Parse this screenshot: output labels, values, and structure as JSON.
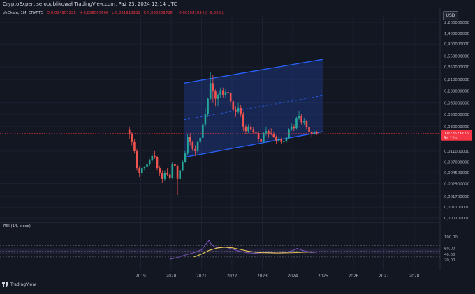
{
  "header": {
    "publisher_text": "CryptoExpertise opublikował TradingView.com, Paź 23, 2024 12:14 UTC"
  },
  "legend": {
    "symbol": "VeChain, 1M, CRYPTO",
    "open": "O 0,024307326",
    "high": "H 0,025097606",
    "low": "L 0,021319321",
    "close": "C 0,022623725",
    "change": "−0,001681934 (−6,92%)"
  },
  "currency_button": "USD",
  "price_axis": {
    "labels": [
      "2,200000000",
      "1,400000000",
      "0,900000000",
      "0,550000000",
      "0,350000000",
      "0,210000000",
      "0,130000000",
      "0,080000000",
      "0,050000000",
      "0,030000000",
      "0,011000000",
      "0,007000000",
      "0,004500000",
      "0,002900000",
      "0,001700000",
      "0,001100000",
      "0,000700000"
    ],
    "current_price": "0,022623725",
    "countdown": "8d 12h"
  },
  "rsi": {
    "title": "RSI (14, close)",
    "labels": [
      "100,00",
      "60,00",
      "40,00",
      "20,00"
    ]
  },
  "time_axis": [
    "2019",
    "2020",
    "2021",
    "2022",
    "2023",
    "2024",
    "2025",
    "2026",
    "2027",
    "2028"
  ],
  "footer": {
    "brand": "TradingView"
  },
  "colors": {
    "background": "#131722",
    "bull": "#26a69a",
    "bear": "#ef5350",
    "channel": "#2962ff",
    "price_line": "#f23645",
    "rsi_line": "#7e57c2",
    "rsi_ma": "#f7d154"
  },
  "chart_data": {
    "type": "candlestick",
    "timeframe": "1M",
    "scale": "log",
    "ylim": [
      0.0007,
      2.2
    ],
    "last_price": 0.022623725,
    "candles": [
      {
        "t": "2018-08",
        "o": 0.027,
        "h": 0.03,
        "l": 0.018,
        "c": 0.022
      },
      {
        "t": "2018-09",
        "o": 0.022,
        "h": 0.024,
        "l": 0.014,
        "c": 0.016
      },
      {
        "t": "2018-10",
        "o": 0.016,
        "h": 0.018,
        "l": 0.01,
        "c": 0.011
      },
      {
        "t": "2018-11",
        "o": 0.011,
        "h": 0.012,
        "l": 0.005,
        "c": 0.0055
      },
      {
        "t": "2018-12",
        "o": 0.0055,
        "h": 0.006,
        "l": 0.0038,
        "c": 0.0045
      },
      {
        "t": "2019-01",
        "o": 0.0045,
        "h": 0.006,
        "l": 0.004,
        "c": 0.0055
      },
      {
        "t": "2019-02",
        "o": 0.0055,
        "h": 0.006,
        "l": 0.005,
        "c": 0.0057
      },
      {
        "t": "2019-03",
        "o": 0.0057,
        "h": 0.007,
        "l": 0.0052,
        "c": 0.0065
      },
      {
        "t": "2019-04",
        "o": 0.0065,
        "h": 0.008,
        "l": 0.006,
        "c": 0.0075
      },
      {
        "t": "2019-05",
        "o": 0.0075,
        "h": 0.01,
        "l": 0.007,
        "c": 0.009
      },
      {
        "t": "2019-06",
        "o": 0.009,
        "h": 0.011,
        "l": 0.008,
        "c": 0.0085
      },
      {
        "t": "2019-07",
        "o": 0.0085,
        "h": 0.009,
        "l": 0.005,
        "c": 0.0055
      },
      {
        "t": "2019-08",
        "o": 0.0055,
        "h": 0.006,
        "l": 0.004,
        "c": 0.0045
      },
      {
        "t": "2019-09",
        "o": 0.0045,
        "h": 0.005,
        "l": 0.003,
        "c": 0.0035
      },
      {
        "t": "2019-10",
        "o": 0.0035,
        "h": 0.005,
        "l": 0.0032,
        "c": 0.0045
      },
      {
        "t": "2019-11",
        "o": 0.0045,
        "h": 0.0055,
        "l": 0.004,
        "c": 0.0042
      },
      {
        "t": "2019-12",
        "o": 0.0042,
        "h": 0.0045,
        "l": 0.0033,
        "c": 0.0036
      },
      {
        "t": "2020-01",
        "o": 0.0036,
        "h": 0.007,
        "l": 0.0035,
        "c": 0.0065
      },
      {
        "t": "2020-02",
        "o": 0.0065,
        "h": 0.009,
        "l": 0.0055,
        "c": 0.006
      },
      {
        "t": "2020-03",
        "o": 0.006,
        "h": 0.0062,
        "l": 0.0018,
        "c": 0.0035
      },
      {
        "t": "2020-04",
        "o": 0.0035,
        "h": 0.0055,
        "l": 0.0033,
        "c": 0.005
      },
      {
        "t": "2020-05",
        "o": 0.005,
        "h": 0.0075,
        "l": 0.0048,
        "c": 0.007
      },
      {
        "t": "2020-06",
        "o": 0.007,
        "h": 0.011,
        "l": 0.0068,
        "c": 0.01
      },
      {
        "t": "2020-07",
        "o": 0.01,
        "h": 0.022,
        "l": 0.0095,
        "c": 0.02
      },
      {
        "t": "2020-08",
        "o": 0.02,
        "h": 0.023,
        "l": 0.014,
        "c": 0.016
      },
      {
        "t": "2020-09",
        "o": 0.016,
        "h": 0.017,
        "l": 0.011,
        "c": 0.012
      },
      {
        "t": "2020-10",
        "o": 0.012,
        "h": 0.014,
        "l": 0.009,
        "c": 0.011
      },
      {
        "t": "2020-11",
        "o": 0.011,
        "h": 0.017,
        "l": 0.01,
        "c": 0.016
      },
      {
        "t": "2020-12",
        "o": 0.016,
        "h": 0.02,
        "l": 0.015,
        "c": 0.019
      },
      {
        "t": "2021-01",
        "o": 0.019,
        "h": 0.035,
        "l": 0.018,
        "c": 0.033
      },
      {
        "t": "2021-02",
        "o": 0.033,
        "h": 0.065,
        "l": 0.03,
        "c": 0.05
      },
      {
        "t": "2021-03",
        "o": 0.05,
        "h": 0.1,
        "l": 0.045,
        "c": 0.095
      },
      {
        "t": "2021-04",
        "o": 0.095,
        "h": 0.28,
        "l": 0.09,
        "c": 0.18
      },
      {
        "t": "2021-05",
        "o": 0.18,
        "h": 0.25,
        "l": 0.08,
        "c": 0.13
      },
      {
        "t": "2021-06",
        "o": 0.13,
        "h": 0.14,
        "l": 0.07,
        "c": 0.095
      },
      {
        "t": "2021-07",
        "o": 0.095,
        "h": 0.12,
        "l": 0.07,
        "c": 0.11
      },
      {
        "t": "2021-08",
        "o": 0.11,
        "h": 0.15,
        "l": 0.1,
        "c": 0.135
      },
      {
        "t": "2021-09",
        "o": 0.135,
        "h": 0.15,
        "l": 0.1,
        "c": 0.11
      },
      {
        "t": "2021-10",
        "o": 0.11,
        "h": 0.14,
        "l": 0.1,
        "c": 0.125
      },
      {
        "t": "2021-11",
        "o": 0.125,
        "h": 0.17,
        "l": 0.11,
        "c": 0.12
      },
      {
        "t": "2021-12",
        "o": 0.12,
        "h": 0.125,
        "l": 0.07,
        "c": 0.085
      },
      {
        "t": "2022-01",
        "o": 0.085,
        "h": 0.09,
        "l": 0.055,
        "c": 0.06
      },
      {
        "t": "2022-02",
        "o": 0.06,
        "h": 0.07,
        "l": 0.045,
        "c": 0.055
      },
      {
        "t": "2022-03",
        "o": 0.055,
        "h": 0.08,
        "l": 0.05,
        "c": 0.065
      },
      {
        "t": "2022-04",
        "o": 0.065,
        "h": 0.075,
        "l": 0.045,
        "c": 0.05
      },
      {
        "t": "2022-05",
        "o": 0.05,
        "h": 0.055,
        "l": 0.025,
        "c": 0.03
      },
      {
        "t": "2022-06",
        "o": 0.03,
        "h": 0.033,
        "l": 0.022,
        "c": 0.025
      },
      {
        "t": "2022-07",
        "o": 0.025,
        "h": 0.033,
        "l": 0.023,
        "c": 0.03
      },
      {
        "t": "2022-08",
        "o": 0.03,
        "h": 0.035,
        "l": 0.025,
        "c": 0.027
      },
      {
        "t": "2022-09",
        "o": 0.027,
        "h": 0.03,
        "l": 0.022,
        "c": 0.024
      },
      {
        "t": "2022-10",
        "o": 0.024,
        "h": 0.027,
        "l": 0.022,
        "c": 0.023
      },
      {
        "t": "2022-11",
        "o": 0.023,
        "h": 0.025,
        "l": 0.016,
        "c": 0.018
      },
      {
        "t": "2022-12",
        "o": 0.018,
        "h": 0.019,
        "l": 0.015,
        "c": 0.016
      },
      {
        "t": "2023-01",
        "o": 0.016,
        "h": 0.024,
        "l": 0.0155,
        "c": 0.023
      },
      {
        "t": "2023-02",
        "o": 0.023,
        "h": 0.03,
        "l": 0.021,
        "c": 0.025
      },
      {
        "t": "2023-03",
        "o": 0.025,
        "h": 0.027,
        "l": 0.019,
        "c": 0.023
      },
      {
        "t": "2023-04",
        "o": 0.023,
        "h": 0.028,
        "l": 0.021,
        "c": 0.022
      },
      {
        "t": "2023-05",
        "o": 0.022,
        "h": 0.024,
        "l": 0.019,
        "c": 0.02
      },
      {
        "t": "2023-06",
        "o": 0.02,
        "h": 0.021,
        "l": 0.015,
        "c": 0.017
      },
      {
        "t": "2023-07",
        "o": 0.017,
        "h": 0.02,
        "l": 0.016,
        "c": 0.018
      },
      {
        "t": "2023-08",
        "o": 0.018,
        "h": 0.019,
        "l": 0.015,
        "c": 0.016
      },
      {
        "t": "2023-09",
        "o": 0.016,
        "h": 0.017,
        "l": 0.015,
        "c": 0.0165
      },
      {
        "t": "2023-10",
        "o": 0.0165,
        "h": 0.02,
        "l": 0.0155,
        "c": 0.019
      },
      {
        "t": "2023-11",
        "o": 0.019,
        "h": 0.028,
        "l": 0.018,
        "c": 0.027
      },
      {
        "t": "2023-12",
        "o": 0.027,
        "h": 0.035,
        "l": 0.025,
        "c": 0.03
      },
      {
        "t": "2024-01",
        "o": 0.03,
        "h": 0.033,
        "l": 0.025,
        "c": 0.028
      },
      {
        "t": "2024-02",
        "o": 0.028,
        "h": 0.045,
        "l": 0.027,
        "c": 0.042
      },
      {
        "t": "2024-03",
        "o": 0.042,
        "h": 0.058,
        "l": 0.04,
        "c": 0.047
      },
      {
        "t": "2024-04",
        "o": 0.047,
        "h": 0.05,
        "l": 0.033,
        "c": 0.036
      },
      {
        "t": "2024-05",
        "o": 0.036,
        "h": 0.043,
        "l": 0.032,
        "c": 0.038
      },
      {
        "t": "2024-06",
        "o": 0.038,
        "h": 0.04,
        "l": 0.027,
        "c": 0.029
      },
      {
        "t": "2024-07",
        "o": 0.029,
        "h": 0.031,
        "l": 0.023,
        "c": 0.024
      },
      {
        "t": "2024-08",
        "o": 0.024,
        "h": 0.025,
        "l": 0.02,
        "c": 0.022
      },
      {
        "t": "2024-09",
        "o": 0.022,
        "h": 0.026,
        "l": 0.021,
        "c": 0.0243
      },
      {
        "t": "2024-10",
        "o": 0.024307326,
        "h": 0.025097606,
        "l": 0.021319321,
        "c": 0.022623725
      }
    ],
    "channel": {
      "start": "2020-06",
      "end": "2025-01",
      "upper": [
        0.18,
        0.48
      ],
      "lower": [
        0.0085,
        0.0245
      ],
      "midline": [
        0.04,
        0.108
      ]
    },
    "rsi": {
      "ylim": [
        20,
        100
      ],
      "bands": [
        40,
        60
      ],
      "values": [
        [
          2019.95,
          22
        ],
        [
          2020.2,
          28
        ],
        [
          2020.5,
          38
        ],
        [
          2020.75,
          45
        ],
        [
          2021.0,
          55
        ],
        [
          2021.15,
          75
        ],
        [
          2021.25,
          88
        ],
        [
          2021.33,
          72
        ],
        [
          2021.5,
          62
        ],
        [
          2021.75,
          65
        ],
        [
          2022.0,
          58
        ],
        [
          2022.25,
          50
        ],
        [
          2022.5,
          45
        ],
        [
          2022.75,
          43
        ],
        [
          2023.0,
          45
        ],
        [
          2023.25,
          46
        ],
        [
          2023.5,
          44
        ],
        [
          2023.75,
          46
        ],
        [
          2024.0,
          52
        ],
        [
          2024.15,
          60
        ],
        [
          2024.35,
          52
        ],
        [
          2024.6,
          46
        ],
        [
          2024.8,
          47
        ]
      ],
      "ma": [
        [
          2020.75,
          30
        ],
        [
          2021.0,
          40
        ],
        [
          2021.25,
          53
        ],
        [
          2021.5,
          61
        ],
        [
          2021.75,
          64
        ],
        [
          2022.0,
          62
        ],
        [
          2022.25,
          57
        ],
        [
          2022.5,
          51
        ],
        [
          2022.75,
          47
        ],
        [
          2023.0,
          45
        ],
        [
          2023.5,
          44
        ],
        [
          2024.0,
          45
        ],
        [
          2024.4,
          47
        ],
        [
          2024.8,
          48
        ]
      ]
    }
  }
}
